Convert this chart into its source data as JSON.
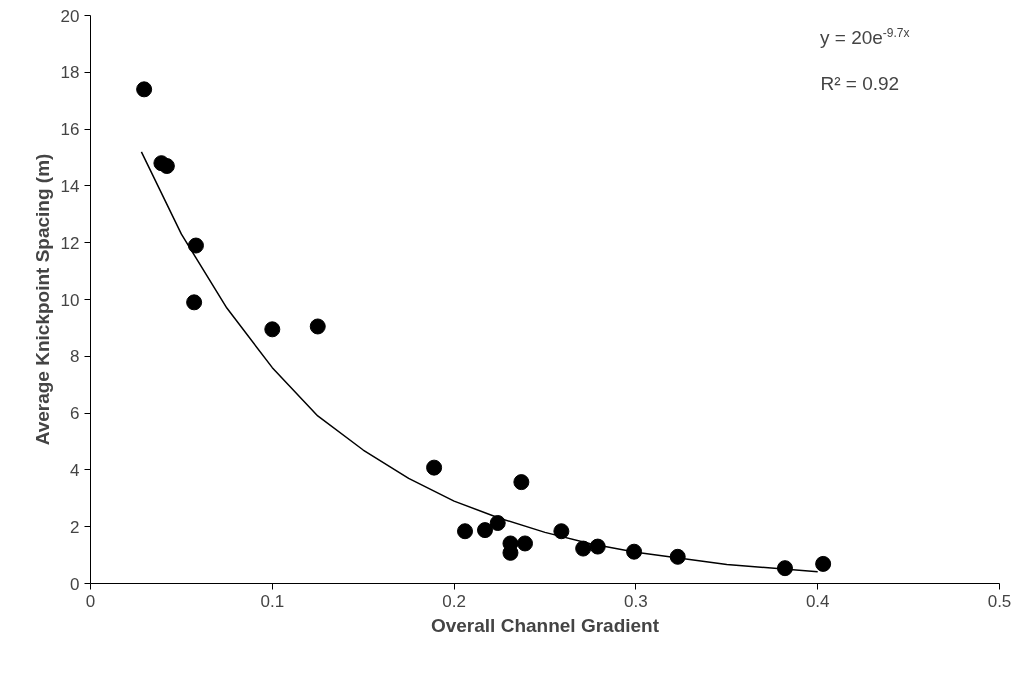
{
  "chart_data": {
    "type": "scatter",
    "xlabel": "Overall Channel Gradient",
    "ylabel": "Average Knickpoint Spacing (m)",
    "xlim": [
      0,
      0.5
    ],
    "xticks": [
      {
        "value": 0,
        "label": "0"
      },
      0.1,
      0.2,
      0.3,
      0.4,
      0.5
    ],
    "ylim": [
      0,
      20
    ],
    "yticks": [
      0,
      2,
      4,
      6,
      8,
      10,
      12,
      14,
      16,
      18,
      20
    ],
    "grid": false,
    "marker": "circle",
    "annotations": [
      "y = 20e$^{-9.7x}$",
      "R² = 0.92"
    ],
    "series": [
      {
        "color": "#000000",
        "x": [
          0.0295,
          0.039,
          0.042,
          0.058,
          0.057,
          0.1,
          0.125,
          0.189,
          0.206,
          0.217,
          0.224,
          0.237,
          0.231,
          0.231,
          0.239,
          0.259,
          0.271,
          0.279,
          0.299,
          0.323,
          0.382,
          0.403
        ],
        "values": [
          17.4,
          14.8,
          14.7,
          11.9,
          9.9,
          8.95,
          9.05,
          4.08,
          1.84,
          1.88,
          2.13,
          3.57,
          1.41,
          1.08,
          1.41,
          1.84,
          1.23,
          1.3,
          1.12,
          0.94,
          0.54,
          0.69
        ]
      },
      {
        "type": "line",
        "color": "#000000",
        "line_style": "solid",
        "marker": "none",
        "x": [
          0.028,
          0.05,
          0.075,
          0.1,
          0.125,
          0.15,
          0.175,
          0.2,
          0.225,
          0.25,
          0.275,
          0.3,
          0.35,
          0.4
        ],
        "values": [
          15.2,
          12.3,
          9.7,
          7.6,
          5.9,
          4.7,
          3.7,
          2.9,
          2.3,
          1.8,
          1.4,
          1.1,
          0.67,
          0.41
        ]
      }
    ]
  }
}
